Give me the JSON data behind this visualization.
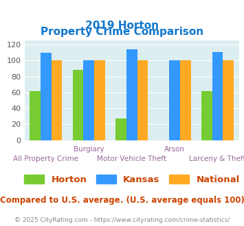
{
  "title_line1": "2019 Horton",
  "title_line2": "Property Crime Comparison",
  "categories": [
    "All Property Crime",
    "Burglary",
    "Motor Vehicle Theft",
    "Arson",
    "Larceny & Theft"
  ],
  "horton": [
    62,
    88,
    27,
    0,
    62
  ],
  "kansas": [
    110,
    100,
    114,
    100,
    111
  ],
  "national": [
    100,
    100,
    100,
    100,
    100
  ],
  "colors": {
    "horton": "#77cc33",
    "kansas": "#3399ff",
    "national": "#ffaa22"
  },
  "ylim": [
    0,
    125
  ],
  "yticks": [
    0,
    20,
    40,
    60,
    80,
    100,
    120
  ],
  "xlabel_top": [
    "",
    "Burglary",
    "",
    "Arson",
    ""
  ],
  "xlabel_bottom": [
    "All Property Crime",
    "",
    "Motor Vehicle Theft",
    "",
    "Larceny & Theft"
  ],
  "title_color": "#1177cc",
  "legend_text_color": "#cc4400",
  "subtitle_text": "Compared to U.S. average. (U.S. average equals 100)",
  "subtitle_color": "#cc4400",
  "footer_text": "© 2025 CityRating.com - https://www.cityrating.com/crime-statistics/",
  "footer_color": "#888888",
  "bg_color": "#ddeef0",
  "bar_width": 0.25
}
